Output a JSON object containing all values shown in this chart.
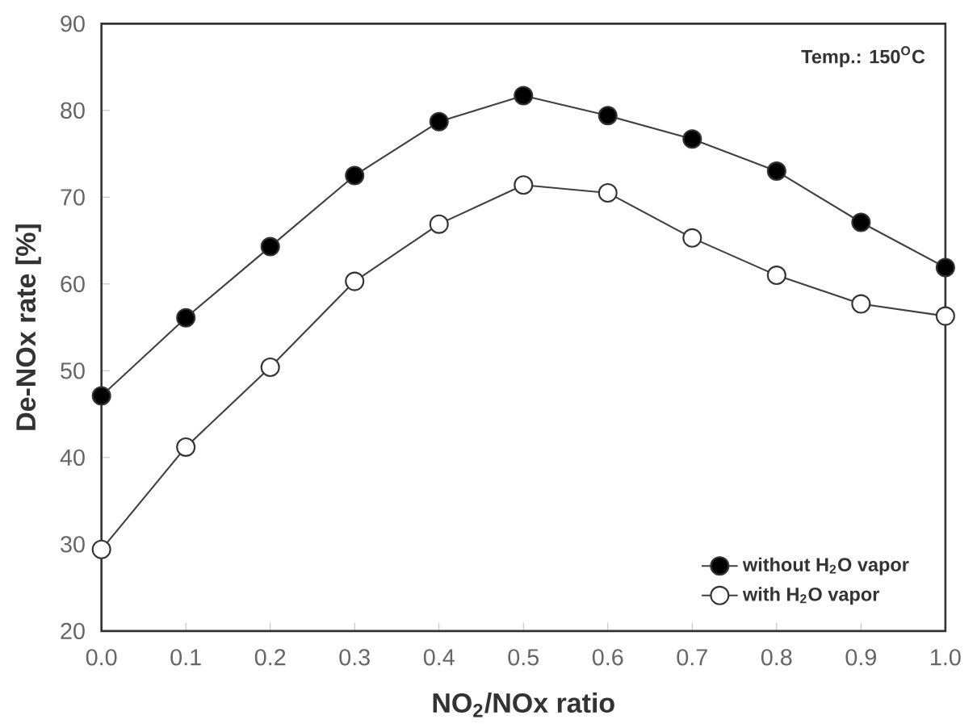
{
  "chart_data": {
    "type": "line",
    "xlabel": "NO$_{2}$/NOx ratio",
    "ylabel": "De-NOx rate [%]",
    "x": [
      0.0,
      0.1,
      0.2,
      0.3,
      0.4,
      0.5,
      0.6,
      0.7,
      0.8,
      0.9,
      1.0
    ],
    "series": [
      {
        "name": "without H$_{2}$O vapor",
        "color": "#000000",
        "values": [
          47.1,
          56.1,
          64.3,
          72.5,
          78.7,
          81.7,
          79.4,
          76.7,
          73.0,
          67.1,
          61.9
        ]
      },
      {
        "name": "with H$_{2}$O vapor",
        "color": "#ffffff",
        "values": [
          29.4,
          41.2,
          50.4,
          60.3,
          66.9,
          71.4,
          70.5,
          65.3,
          61.0,
          57.7,
          56.3
        ]
      }
    ],
    "xlim": [
      0.0,
      1.0
    ],
    "ylim": [
      20,
      90
    ],
    "xticks": [
      {
        "value": 0.0,
        "label": "0.0"
      },
      0.1,
      0.2,
      0.3,
      0.4,
      0.5,
      0.6,
      0.7,
      0.8,
      0.9,
      {
        "value": 1.0,
        "label": "1.0"
      }
    ],
    "yticks": [
      20,
      30,
      40,
      50,
      60,
      70,
      80,
      90
    ],
    "annotations": [
      "Temp.: 150$^{O}$C"
    ],
    "legend": "bottom right",
    "marker": "circle",
    "line_style": "solid",
    "grid": false
  }
}
